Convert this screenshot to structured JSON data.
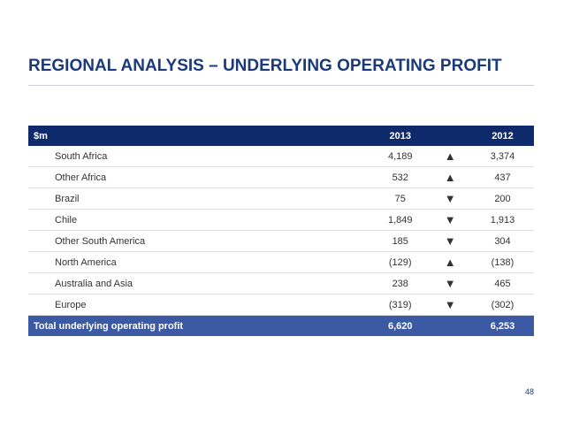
{
  "title": "REGIONAL ANALYSIS – UNDERLYING OPERATING PROFIT",
  "table": {
    "header": {
      "label": "$m",
      "col_2013": "2013",
      "col_2012": "2012"
    },
    "rows": [
      {
        "region": "South Africa",
        "v2013": "4,189",
        "trend": "up",
        "arrow": "▲",
        "v2012": "3,374"
      },
      {
        "region": "Other Africa",
        "v2013": "532",
        "trend": "up",
        "arrow": "▲",
        "v2012": "437"
      },
      {
        "region": "Brazil",
        "v2013": "75",
        "trend": "down",
        "arrow": "▼",
        "v2012": "200"
      },
      {
        "region": "Chile",
        "v2013": "1,849",
        "trend": "down",
        "arrow": "▼",
        "v2012": "1,913"
      },
      {
        "region": "Other South America",
        "v2013": "185",
        "trend": "down",
        "arrow": "▼",
        "v2012": "304"
      },
      {
        "region": "North America",
        "v2013": "(129)",
        "trend": "up",
        "arrow": "▲",
        "v2012": "(138)"
      },
      {
        "region": "Australia and Asia",
        "v2013": "238",
        "trend": "down",
        "arrow": "▼",
        "v2012": "465"
      },
      {
        "region": "Europe",
        "v2013": "(319)",
        "trend": "down",
        "arrow": "▼",
        "v2012": "(302)"
      }
    ],
    "total": {
      "label": "Total underlying operating profit",
      "v2013": "6,620",
      "v2012": "6,253"
    }
  },
  "colors": {
    "title": "#1a3a7c",
    "header_bg": "#0e2a6b",
    "total_bg": "#3b5aa3",
    "arrow_up": "#1fa14a",
    "arrow_down": "#d61d22"
  },
  "page_number": "48"
}
